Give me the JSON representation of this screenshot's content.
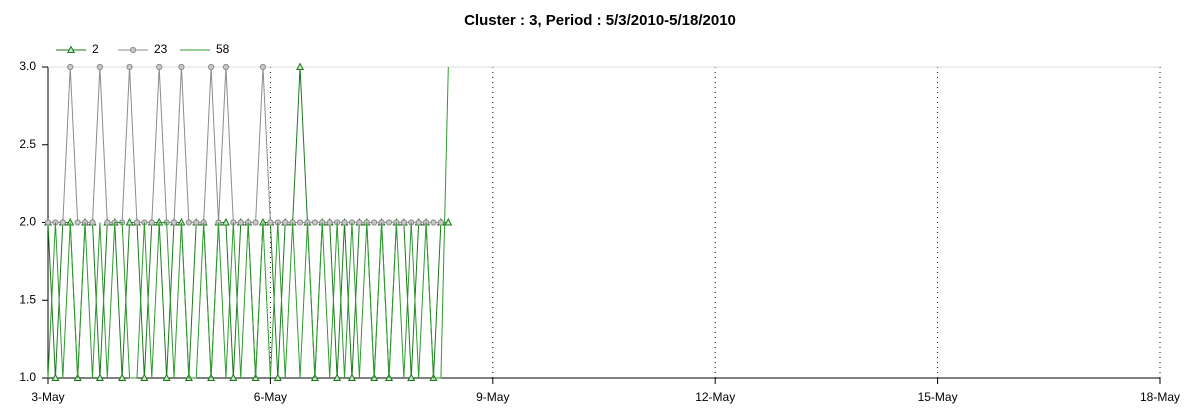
{
  "chart_data": {
    "type": "line",
    "title": "Cluster : 3, Period : 5/3/2010-5/18/2010",
    "x": [
      3,
      3.1,
      3.2,
      3.3,
      3.4,
      3.5,
      3.6,
      3.7,
      3.8,
      3.9,
      4,
      4.1,
      4.2,
      4.3,
      4.4,
      4.5,
      4.6,
      4.7,
      4.8,
      4.9,
      5,
      5.1,
      5.2,
      5.3,
      5.4,
      5.5,
      5.6,
      5.7,
      5.8,
      5.9,
      6,
      6.1,
      6.2,
      6.3,
      6.4,
      6.5,
      6.6,
      6.7,
      6.8,
      6.9,
      7,
      7.1,
      7.2,
      7.3,
      7.4,
      7.5,
      7.6,
      7.7,
      7.8,
      7.9,
      8,
      8.1,
      8.2,
      8.3,
      8.4
    ],
    "series": [
      {
        "name": "2",
        "color": "#1a7a1a",
        "marker": "triangle",
        "values": [
          2,
          1,
          2,
          2,
          1,
          2,
          2,
          1,
          2,
          2,
          1,
          2,
          2,
          1,
          2,
          2,
          1,
          2,
          2,
          1,
          2,
          2,
          1,
          2,
          2,
          1,
          2,
          2,
          1,
          2,
          2,
          1,
          2,
          2,
          3,
          2,
          1,
          2,
          2,
          1,
          2,
          1,
          2,
          2,
          1,
          2,
          1,
          2,
          2,
          1,
          2,
          2,
          1,
          2,
          2
        ]
      },
      {
        "name": "23",
        "color": "#8c8c8c",
        "marker": "circle",
        "values": [
          2,
          2,
          2,
          3,
          2,
          2,
          2,
          3,
          2,
          2,
          2,
          3,
          2,
          2,
          2,
          3,
          2,
          2,
          3,
          2,
          2,
          2,
          3,
          2,
          3,
          2,
          2,
          2,
          2,
          3,
          2,
          2,
          2,
          2,
          2,
          2,
          2,
          2,
          2,
          2,
          2,
          2,
          2,
          2,
          2,
          2,
          2,
          2,
          2,
          2,
          2,
          2,
          2,
          2,
          null
        ]
      },
      {
        "name": "58",
        "color": "#2e9b2e",
        "values": [
          1,
          2,
          1,
          2,
          1,
          2,
          1,
          2,
          1,
          2,
          2,
          1,
          1,
          2,
          1,
          2,
          2,
          1,
          2,
          1,
          1,
          2,
          1,
          2,
          1,
          2,
          1,
          2,
          1,
          2,
          1,
          2,
          1,
          2,
          1,
          2,
          1,
          2,
          1,
          2,
          1,
          2,
          1,
          2,
          1,
          2,
          1,
          2,
          1,
          2,
          1,
          2,
          1,
          1,
          3
        ]
      }
    ],
    "xlim": [
      3,
      18
    ],
    "xticks": [
      {
        "value": 3,
        "label": "3-May"
      },
      {
        "value": 6,
        "label": "6-May"
      },
      {
        "value": 9,
        "label": "9-May"
      },
      {
        "value": 12,
        "label": "12-May"
      },
      {
        "value": 15,
        "label": "15-May"
      },
      {
        "value": 18,
        "label": "18-May"
      }
    ],
    "ylim": [
      1,
      3
    ],
    "yticks": [
      {
        "value": 1,
        "label": "1.0"
      },
      {
        "value": 1.5,
        "label": "1.5"
      },
      {
        "value": 2,
        "label": "2.0"
      },
      {
        "value": 2.5,
        "label": "2.5"
      },
      {
        "value": 3,
        "label": "3.0"
      }
    ],
    "grid": true,
    "legend": "top-left"
  }
}
